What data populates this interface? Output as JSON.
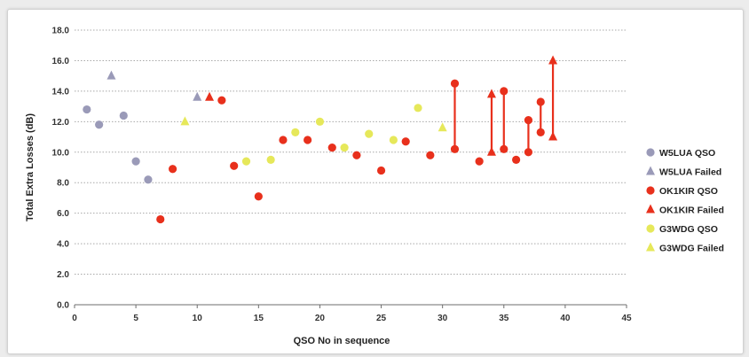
{
  "chart_data": {
    "type": "scatter",
    "xlabel": "QSO No in sequence",
    "ylabel": "Total Extra Losses (dB)",
    "xlim": [
      0,
      45
    ],
    "ylim": [
      0,
      18
    ],
    "x_ticks": [
      "0",
      "5",
      "10",
      "15",
      "20",
      "25",
      "30",
      "35",
      "40",
      "45"
    ],
    "y_ticks": [
      "0.0",
      "2.0",
      "4.0",
      "6.0",
      "8.0",
      "10.0",
      "12.0",
      "14.0",
      "16.0",
      "18.0"
    ],
    "grid": "horizontal dotted",
    "legend_position": "right",
    "series": [
      {
        "name": "W5LUA QSO",
        "marker": "circle",
        "color": "#9a9ab8",
        "points": [
          [
            1,
            12.8
          ],
          [
            2,
            11.8
          ],
          [
            4,
            12.4
          ],
          [
            5,
            9.4
          ],
          [
            6,
            8.2
          ]
        ]
      },
      {
        "name": "W5LUA Failed",
        "marker": "triangle",
        "color": "#9a9ab8",
        "points": [
          [
            3,
            15.0
          ],
          [
            10,
            13.6
          ]
        ]
      },
      {
        "name": "OK1KIR QSO",
        "marker": "circle",
        "color": "#e8301c",
        "points": [
          [
            7,
            5.6
          ],
          [
            8,
            8.9
          ],
          [
            12,
            13.4
          ],
          [
            13,
            9.1
          ],
          [
            15,
            7.1
          ],
          [
            17,
            10.8
          ],
          [
            19,
            10.8
          ],
          [
            21,
            10.3
          ],
          [
            23,
            9.8
          ],
          [
            25,
            8.8
          ],
          [
            27,
            10.7
          ],
          [
            29,
            9.8
          ],
          [
            31,
            10.2
          ],
          [
            31,
            14.5
          ],
          [
            33,
            9.4
          ],
          [
            35,
            10.2
          ],
          [
            35,
            14.0
          ],
          [
            36,
            9.5
          ],
          [
            37,
            10.0
          ],
          [
            37,
            12.1
          ],
          [
            38,
            11.3
          ],
          [
            38,
            13.3
          ]
        ]
      },
      {
        "name": "OK1KIR Failed",
        "marker": "triangle",
        "color": "#e8301c",
        "points": [
          [
            11,
            13.6
          ],
          [
            34,
            10.0
          ],
          [
            34,
            13.8
          ],
          [
            39,
            11.0
          ],
          [
            39,
            16.0
          ]
        ]
      },
      {
        "name": "G3WDG QSO",
        "marker": "circle",
        "color": "#e6e85a",
        "points": [
          [
            14,
            9.4
          ],
          [
            16,
            9.5
          ],
          [
            18,
            11.3
          ],
          [
            20,
            12.0
          ],
          [
            22,
            10.3
          ],
          [
            24,
            11.2
          ],
          [
            26,
            10.8
          ],
          [
            28,
            12.9
          ]
        ]
      },
      {
        "name": "G3WDG Failed",
        "marker": "triangle",
        "color": "#e6e85a",
        "points": [
          [
            9,
            12.0
          ],
          [
            30,
            11.6
          ]
        ]
      }
    ],
    "range_lines": [
      {
        "x": 31,
        "from": 10.2,
        "to": 14.5
      },
      {
        "x": 34,
        "from": 10.0,
        "to": 13.8
      },
      {
        "x": 35,
        "from": 10.2,
        "to": 14.0
      },
      {
        "x": 37,
        "from": 10.0,
        "to": 12.1
      },
      {
        "x": 38,
        "from": 11.3,
        "to": 13.3
      },
      {
        "x": 39,
        "from": 11.0,
        "to": 16.0
      }
    ],
    "range_line_color": "#e8301c"
  }
}
